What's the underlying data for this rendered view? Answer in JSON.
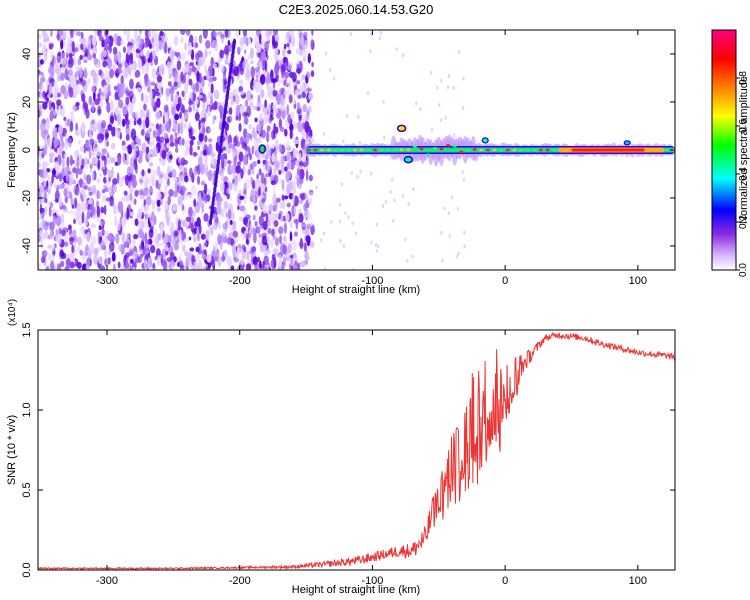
{
  "figure_title": "C2E3.2025.060.14.53.G20",
  "chart_data": [
    {
      "type": "heatmap",
      "title": "C2E3.2025.060.14.53.G20",
      "xlabel": "Height of straight line (km)",
      "ylabel": "Frequency (Hz)",
      "xlim": [
        -352,
        128
      ],
      "ylim": [
        -50,
        50
      ],
      "x_ticks": [
        -300,
        -200,
        -100,
        0,
        100
      ],
      "x_tick_labels": [
        "-300",
        "-200",
        "-100",
        "0",
        "100"
      ],
      "y_ticks": [
        -40,
        -20,
        0,
        20,
        40
      ],
      "y_tick_labels": [
        "-40",
        "-20",
        "0",
        "20",
        "40"
      ],
      "colorbar": {
        "label": "Normalized spectral amplitude",
        "range": [
          0,
          1
        ],
        "ticks": [
          0.0,
          0.2,
          0.4,
          0.6,
          0.8
        ],
        "tick_labels": [
          "0.0",
          "0.2",
          "0.4",
          "0.6",
          "0.8"
        ],
        "colormap": [
          "#ffffff",
          "#8a2be2",
          "#0000ff",
          "#00ffff",
          "#00ff00",
          "#ffff00",
          "#ff7f00",
          "#ff0000",
          "#ff0080"
        ]
      },
      "features": {
        "noise_region_x": [
          -352,
          -150
        ],
        "carrier_frequency_hz": 0,
        "carrier_start_x": -150,
        "high_amplitude_band_x": [
          40,
          120
        ]
      }
    },
    {
      "type": "line",
      "xlabel": "Height of straight line (km)",
      "ylabel": "SNR (10 * v/v)",
      "y_multiplier_label": "(x10⁴)",
      "xlim": [
        -352,
        128
      ],
      "ylim": [
        0,
        1.5
      ],
      "x_ticks": [
        -300,
        -200,
        -100,
        0,
        100
      ],
      "x_tick_labels": [
        "-300",
        "-200",
        "-100",
        "0",
        "100"
      ],
      "y_ticks": [
        0.0,
        0.5,
        1.0,
        1.5
      ],
      "y_tick_labels": [
        "0.0",
        "0.5",
        "1.0",
        "1.5"
      ],
      "series": [
        {
          "color": "#ee3333",
          "x": [
            -352,
            -300,
            -250,
            -200,
            -160,
            -130,
            -110,
            -100,
            -90,
            -80,
            -70,
            -60,
            -55,
            -50,
            -45,
            -40,
            -35,
            -30,
            -25,
            -20,
            -15,
            -10,
            -5,
            0,
            5,
            10,
            15,
            20,
            25,
            30,
            40,
            50,
            60,
            70,
            80,
            90,
            100,
            110,
            120,
            128
          ],
          "values": [
            0.01,
            0.01,
            0.01,
            0.015,
            0.02,
            0.04,
            0.06,
            0.08,
            0.1,
            0.12,
            0.12,
            0.2,
            0.35,
            0.45,
            0.55,
            0.7,
            0.8,
            0.85,
            0.9,
            0.95,
            1.0,
            1.05,
            1.1,
            1.15,
            1.2,
            1.25,
            1.3,
            1.35,
            1.4,
            1.45,
            1.47,
            1.46,
            1.45,
            1.42,
            1.4,
            1.38,
            1.36,
            1.35,
            1.34,
            1.33
          ],
          "noise_amplitude": [
            0.005,
            0.005,
            0.005,
            0.005,
            0.01,
            0.02,
            0.03,
            0.03,
            0.03,
            0.04,
            0.05,
            0.08,
            0.1,
            0.12,
            0.14,
            0.2,
            0.25,
            0.3,
            0.35,
            0.35,
            0.35,
            0.3,
            0.3,
            0.2,
            0.15,
            0.1,
            0.06,
            0.04,
            0.03,
            0.02,
            0.02,
            0.02,
            0.02,
            0.02,
            0.02,
            0.02,
            0.02,
            0.02,
            0.02,
            0.02
          ]
        }
      ]
    }
  ]
}
